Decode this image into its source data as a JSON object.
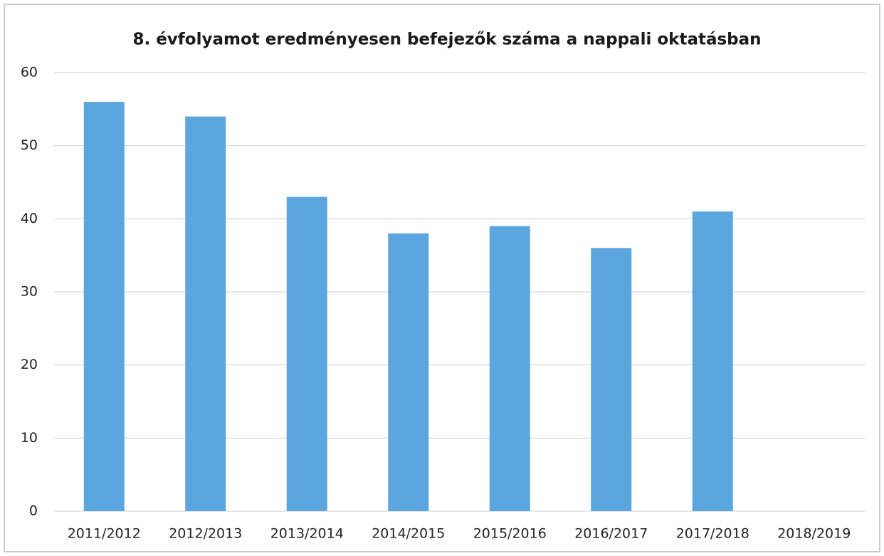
{
  "chart_data": {
    "type": "bar",
    "title": "8. évfolyamot eredményesen befejezők száma  a nappali oktatásban",
    "categories": [
      "2011/2012",
      "2012/2013",
      "2013/2014",
      "2014/2015",
      "2015/2016",
      "2016/2017",
      "2017/2018",
      "2018/2019"
    ],
    "values": [
      56,
      54,
      43,
      38,
      39,
      36,
      41,
      null
    ],
    "color": "#5ba6de",
    "ylim": [
      0,
      60
    ],
    "yticks": [
      0,
      10,
      20,
      30,
      40,
      50,
      60
    ],
    "grid": true
  }
}
